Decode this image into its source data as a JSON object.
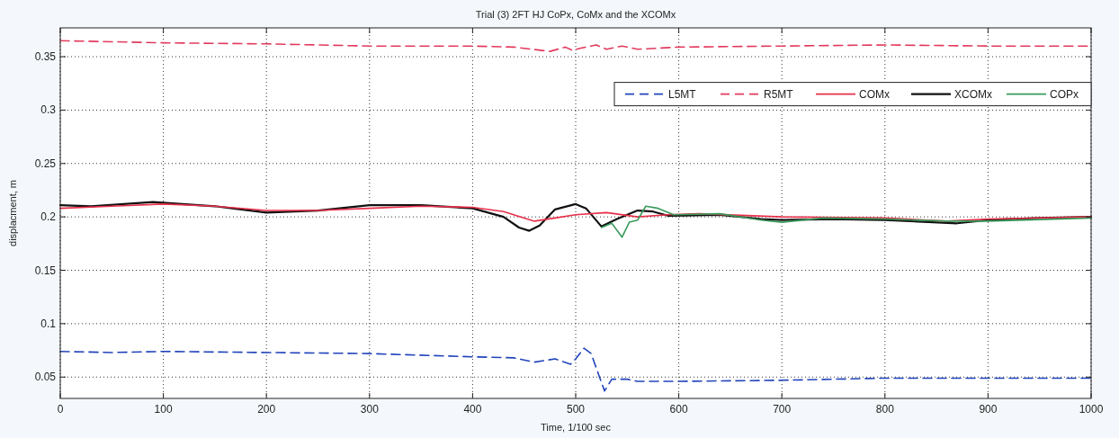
{
  "chart_data": {
    "type": "line",
    "title": "Trial (3) 2FT HJ CoPx, CoMx and the XCOMx",
    "xlabel": "Time, 1/100 sec",
    "ylabel": "displacment, m",
    "xlim": [
      0,
      1000
    ],
    "xticks": [
      0,
      100,
      200,
      300,
      400,
      500,
      600,
      700,
      800,
      900,
      1000
    ],
    "ylim": [
      0.03,
      0.377
    ],
    "yticks": [
      0.05,
      0.1,
      0.15,
      0.2,
      0.25,
      0.3,
      0.35
    ],
    "grid": true,
    "legend": "top right",
    "series": [
      {
        "name": "L5MT",
        "color": "#2244bb",
        "line_style": "dashed",
        "x": [
          0,
          50,
          100,
          200,
          300,
          400,
          440,
          460,
          480,
          495,
          500,
          508,
          515,
          522,
          528,
          535,
          550,
          560,
          600,
          700,
          800,
          900,
          1000
        ],
        "values": [
          0.074,
          0.073,
          0.074,
          0.073,
          0.072,
          0.069,
          0.068,
          0.064,
          0.067,
          0.062,
          0.067,
          0.077,
          0.072,
          0.053,
          0.037,
          0.048,
          0.048,
          0.046,
          0.046,
          0.047,
          0.049,
          0.049,
          0.049
        ]
      },
      {
        "name": "R5MT",
        "color": "#e23a5e",
        "line_style": "dashed",
        "x": [
          0,
          100,
          200,
          300,
          400,
          440,
          475,
          490,
          497,
          505,
          520,
          530,
          545,
          560,
          580,
          600,
          700,
          800,
          900,
          1000
        ],
        "values": [
          0.365,
          0.363,
          0.362,
          0.36,
          0.36,
          0.359,
          0.355,
          0.359,
          0.356,
          0.358,
          0.361,
          0.357,
          0.36,
          0.357,
          0.358,
          0.359,
          0.36,
          0.361,
          0.36,
          0.36
        ]
      },
      {
        "name": "COMx",
        "color": "#e8304a",
        "line_style": "solid",
        "x": [
          0,
          50,
          100,
          150,
          200,
          250,
          300,
          350,
          400,
          430,
          460,
          480,
          500,
          530,
          560,
          590,
          620,
          700,
          800,
          860,
          900,
          1000
        ],
        "values": [
          0.208,
          0.21,
          0.212,
          0.21,
          0.206,
          0.206,
          0.208,
          0.21,
          0.209,
          0.205,
          0.196,
          0.199,
          0.202,
          0.204,
          0.2,
          0.202,
          0.203,
          0.2,
          0.199,
          0.196,
          0.198,
          0.2
        ]
      },
      {
        "name": "XCOMx",
        "color": "#111111",
        "line_style": "solid",
        "x": [
          0,
          30,
          90,
          150,
          200,
          250,
          300,
          350,
          400,
          430,
          445,
          455,
          465,
          480,
          500,
          510,
          525,
          540,
          560,
          575,
          590,
          640,
          680,
          700,
          750,
          800,
          870,
          900,
          950,
          1000
        ],
        "values": [
          0.211,
          0.21,
          0.214,
          0.21,
          0.204,
          0.206,
          0.211,
          0.211,
          0.208,
          0.2,
          0.19,
          0.187,
          0.192,
          0.207,
          0.212,
          0.208,
          0.191,
          0.198,
          0.206,
          0.205,
          0.201,
          0.202,
          0.198,
          0.197,
          0.198,
          0.197,
          0.194,
          0.197,
          0.199,
          0.2
        ]
      },
      {
        "name": "COPx",
        "color": "#3a9a5c",
        "line_style": "solid",
        "x": [
          525,
          535,
          545,
          552,
          560,
          568,
          580,
          595,
          640,
          680,
          700,
          740,
          800,
          860,
          900,
          1000
        ],
        "values": [
          0.19,
          0.194,
          0.181,
          0.195,
          0.197,
          0.21,
          0.208,
          0.202,
          0.203,
          0.197,
          0.195,
          0.199,
          0.198,
          0.196,
          0.196,
          0.199
        ]
      }
    ]
  }
}
